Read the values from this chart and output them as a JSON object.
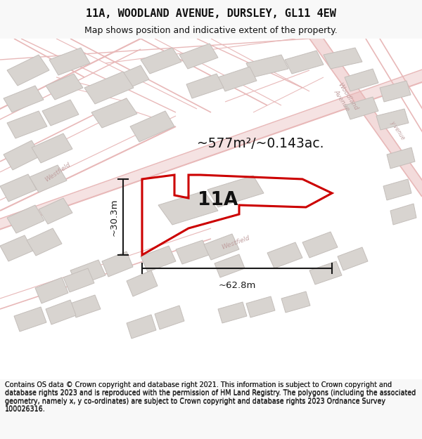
{
  "title": "11A, WOODLAND AVENUE, DURSLEY, GL11 4EW",
  "subtitle": "Map shows position and indicative extent of the property.",
  "footer": "Contains OS data © Crown copyright and database right 2021. This information is subject to Crown copyright and database rights 2023 and is reproduced with the permission of HM Land Registry. The polygons (including the associated geometry, namely x, y co-ordinates) are subject to Crown copyright and database rights 2023 Ordnance Survey 100026316.",
  "area_label": "~577m²/~0.143ac.",
  "width_label": "~62.8m",
  "height_label": "~30.3m",
  "property_label": "11A",
  "map_bg": "#ffffff",
  "fig_bg": "#f8f8f8",
  "road_color": "#e8b8b8",
  "building_fill": "#d8d4d0",
  "building_edge": "#c4beba",
  "property_outline_color": "#cc0000",
  "dim_line_color": "#1a1a1a",
  "title_color": "#111111",
  "footer_color": "#222222",
  "road_label_color": "#c0a0a0"
}
